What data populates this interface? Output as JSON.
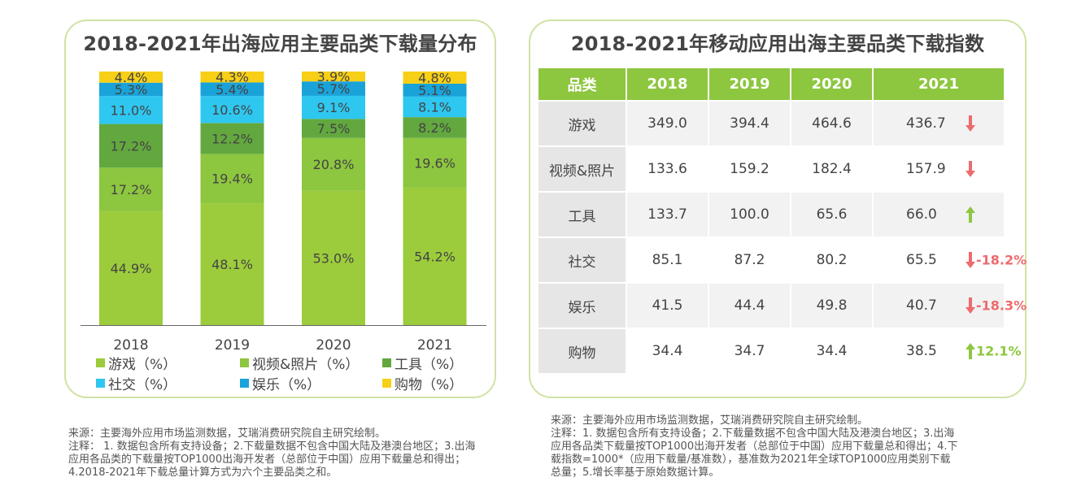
{
  "left_title": "2018-2021年出海应用主要品类下载量分布",
  "right_title": "2018-2021年移动应用出海主要品类下载指数",
  "colors": {
    "game": "#9ccc3c",
    "video_photo": "#8dc63f",
    "tools": "#62a83f",
    "social": "#2ec7f0",
    "entertainment": "#1aa3d9",
    "shopping": "#f7cf17",
    "up_arrow": "#8dc63f",
    "down_arrow": "#ec6b6f",
    "header": "#8dc63f"
  },
  "chart_data": {
    "type": "bar",
    "stacked": true,
    "categories": [
      "2018",
      "2019",
      "2020",
      "2021"
    ],
    "unit": "%",
    "ylim": [
      0,
      100
    ],
    "series": [
      {
        "name": "游戏（%）",
        "values": [
          44.9,
          48.1,
          53.0,
          54.2
        ],
        "labels": [
          "44.9%",
          "48.1%",
          "53.0%",
          "54.2%"
        ]
      },
      {
        "name": "视频&照片（%）",
        "values": [
          17.2,
          19.4,
          20.8,
          19.6
        ],
        "labels": [
          "17.2%",
          "19.4%",
          "20.8%",
          "19.6%"
        ]
      },
      {
        "name": "工具（%）",
        "values": [
          17.2,
          12.2,
          7.5,
          8.2
        ],
        "labels": [
          "17.2%",
          "12.2%",
          "7.5%",
          "8.2%"
        ]
      },
      {
        "name": "社交（%）",
        "values": [
          11.0,
          10.6,
          9.1,
          8.1
        ],
        "labels": [
          "11.0%",
          "10.6%",
          "9.1%",
          "8.1%"
        ]
      },
      {
        "name": "娱乐（%）",
        "values": [
          5.3,
          5.4,
          5.7,
          5.1
        ],
        "labels": [
          "5.3%",
          "5.4%",
          "5.7%",
          "5.1%"
        ]
      },
      {
        "name": "购物（%）",
        "values": [
          4.4,
          4.3,
          3.9,
          4.8
        ],
        "labels": [
          "4.4%",
          "4.3%",
          "3.9%",
          "4.8%"
        ]
      }
    ],
    "legend_position": "bottom"
  },
  "table": {
    "headers": [
      "品类",
      "2018",
      "2019",
      "2020",
      "2021"
    ],
    "rows": [
      {
        "category": "游戏",
        "v2018": "349.0",
        "v2019": "394.4",
        "v2020": "464.6",
        "v2021": "436.7",
        "trend": "down",
        "growth": ""
      },
      {
        "category": "视频&照片",
        "v2018": "133.6",
        "v2019": "159.2",
        "v2020": "182.4",
        "v2021": "157.9",
        "trend": "down",
        "growth": ""
      },
      {
        "category": "工具",
        "v2018": "133.7",
        "v2019": "100.0",
        "v2020": "65.6",
        "v2021": "66.0",
        "trend": "up",
        "growth": ""
      },
      {
        "category": "社交",
        "v2018": "85.1",
        "v2019": "87.2",
        "v2020": "80.2",
        "v2021": "65.5",
        "trend": "down",
        "growth": "-18.2%"
      },
      {
        "category": "娱乐",
        "v2018": "41.5",
        "v2019": "44.4",
        "v2020": "49.8",
        "v2021": "40.7",
        "trend": "down",
        "growth": "-18.3%"
      },
      {
        "category": "购物",
        "v2018": "34.4",
        "v2019": "34.7",
        "v2020": "34.4",
        "v2021": "38.5",
        "trend": "up",
        "growth": "12.1%"
      }
    ]
  },
  "left_notes": [
    "来源：主要海外应用市场监测数据，艾瑞消费研究院自主研究绘制。",
    "注释： 1. 数据包含所有支持设备；2.下载量数据不包含中国大陆及港澳台地区；3.出海",
    "应用各品类的下载量按TOP1000出海开发者（总部位于中国）应用下载量总和得出；",
    "4.2018-2021年下载总量计算方式为六个主要品类之和。"
  ],
  "right_notes": [
    "来源：主要海外应用市场监测数据，艾瑞消费研究院自主研究绘制。",
    "注释：1. 数据包含所有支持设备；2.下载量数据不包含中国大陆及港澳台地区；3.出海",
    "应用各品类下载量按TOP1000出海开发者（总部位于中国）应用下载量总和得出；4.下",
    "载指数=1000*（应用下载量/基准数），基准数为2021年全球TOP1000应用类别下载",
    "总量；5.增长率基于原始数据计算。"
  ]
}
